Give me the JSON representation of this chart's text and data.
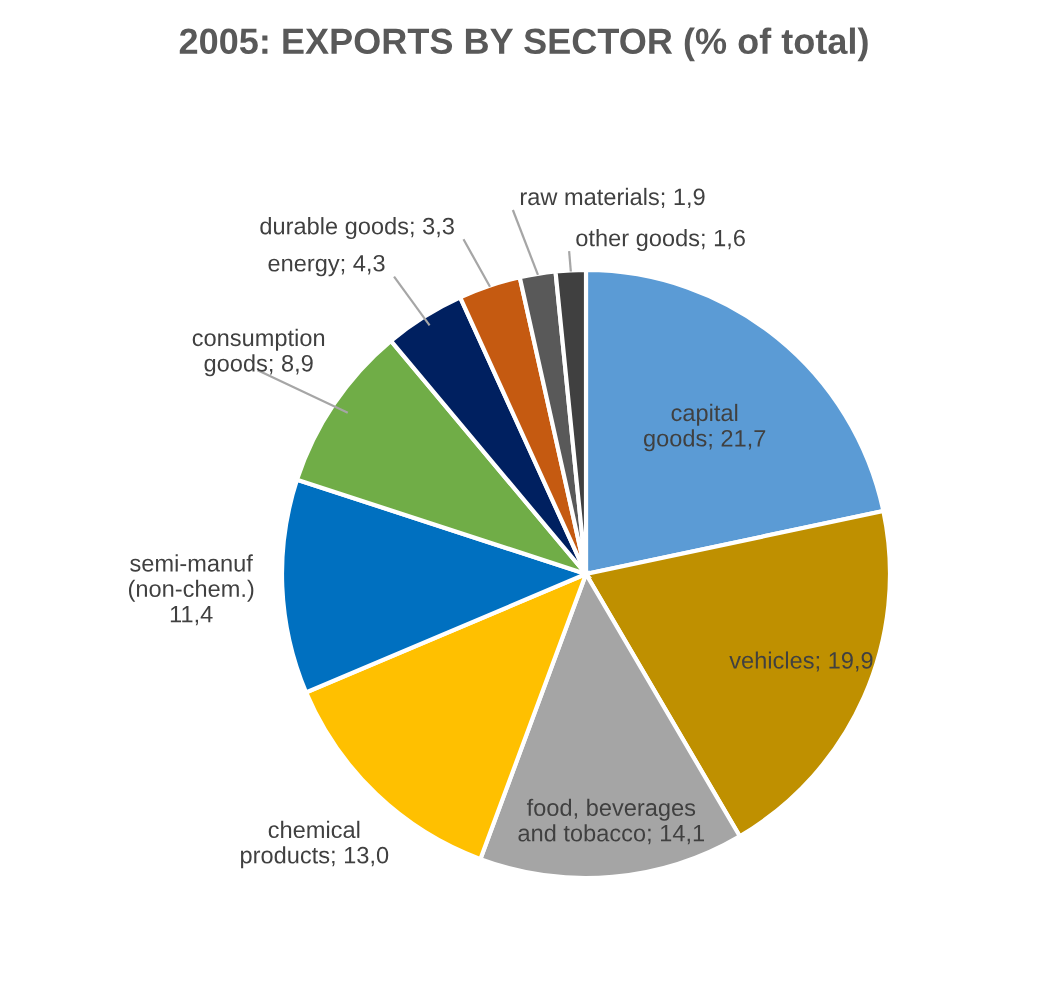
{
  "chart_data": {
    "type": "pie",
    "title": "2005: EXPORTS BY SECTOR (% of total)",
    "categories": [
      "capital\ngoods",
      "vehicles",
      "food, beverages\nand tobacco",
      "chemical\nproducts",
      "semi-manuf\n(non-chem.)",
      "consumption\ngoods",
      "energy",
      "durable goods",
      "raw materials",
      "other goods"
    ],
    "values": [
      21.7,
      19.9,
      14.1,
      13.0,
      11.4,
      8.9,
      4.3,
      3.3,
      1.9,
      1.6
    ],
    "value_labels": [
      "21,7",
      "19,9",
      "14,1",
      "13,0",
      "11,4",
      "8,9",
      "4,3",
      "3,3",
      "1,9",
      "1,6"
    ],
    "colors": [
      "#5b9bd5",
      "#bf9000",
      "#a5a5a5",
      "#ffc000",
      "#0070c0",
      "#70ad47",
      "#002060",
      "#c55a11",
      "#595959",
      "#404040"
    ],
    "legend": false
  }
}
